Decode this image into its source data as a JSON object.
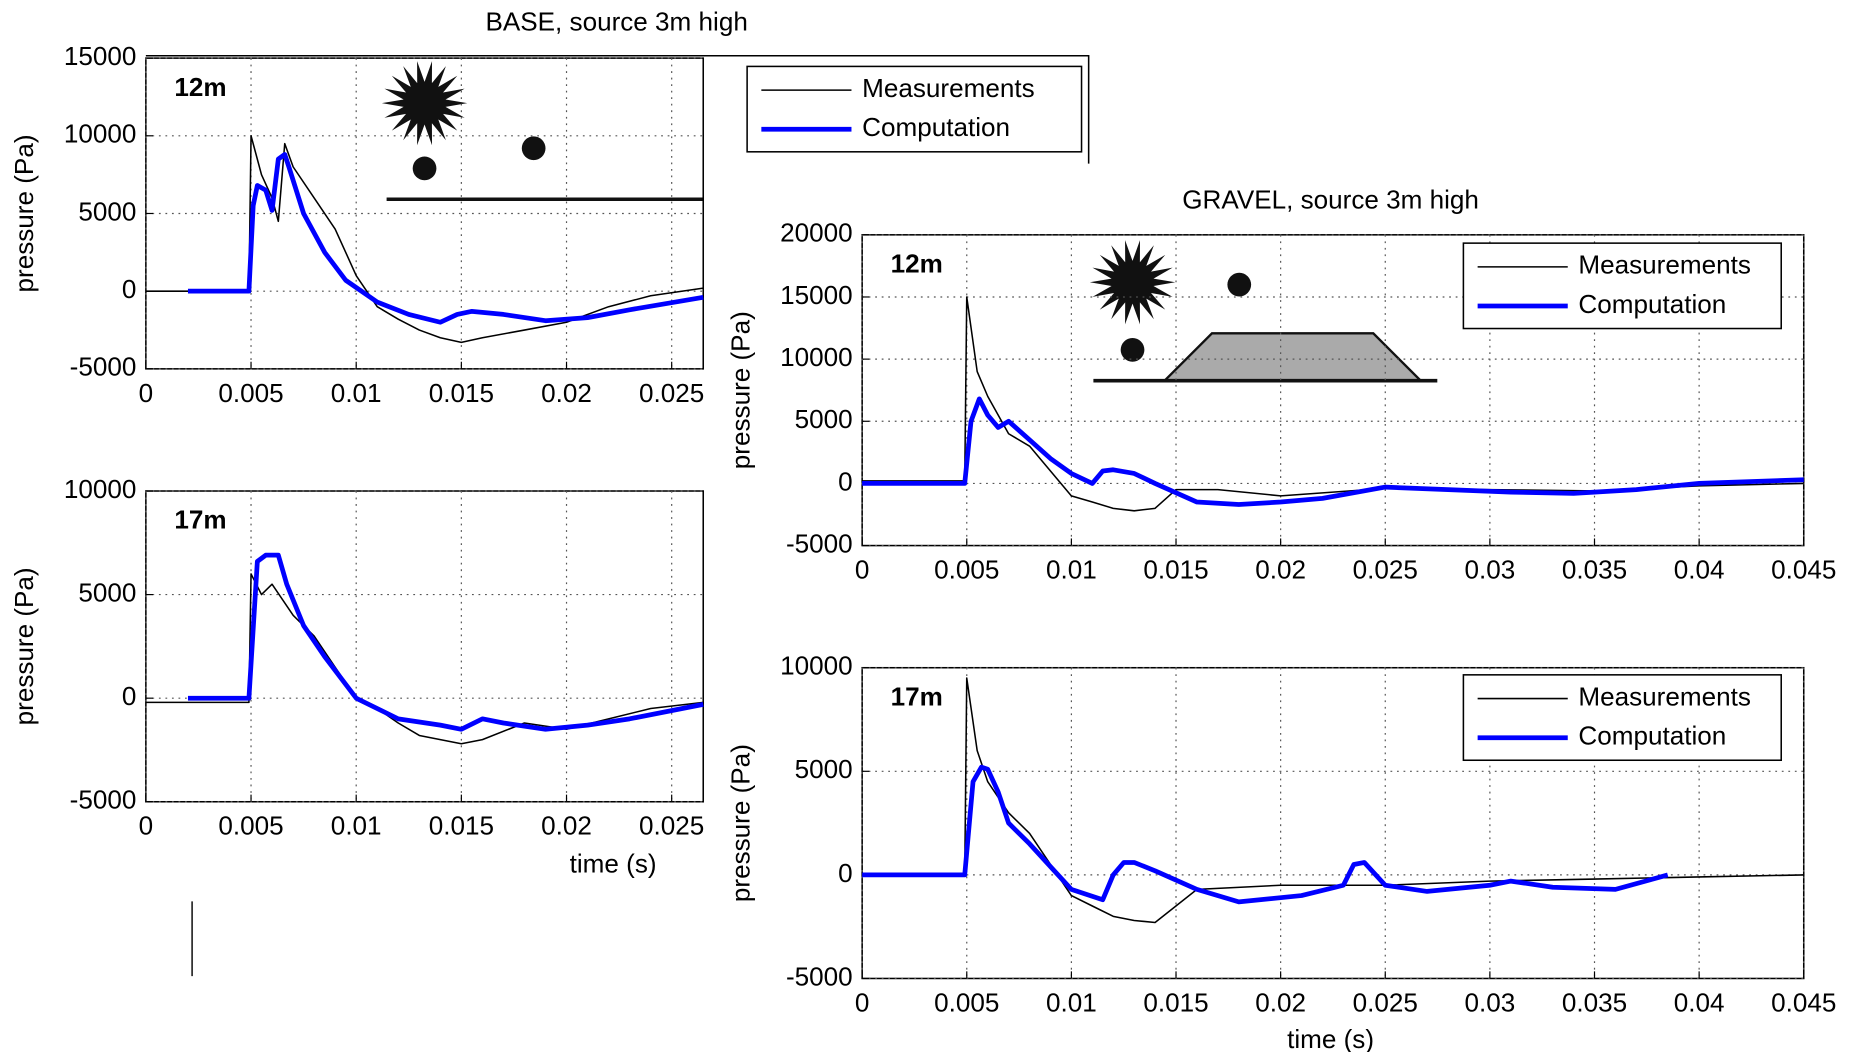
{
  "chart_data": [
    {
      "type": "line",
      "title": "BASE, source 3m high",
      "annotation": "12m",
      "ylabel": "pressure (Pa)",
      "xlim": [
        0,
        0.0265
      ],
      "xticks": [
        0,
        0.005,
        0.01,
        0.015,
        0.02,
        0.025
      ],
      "ylim": [
        -5000,
        15000
      ],
      "yticks": [
        -5000,
        0,
        5000,
        10000,
        15000
      ],
      "grid": true,
      "legend": "upper right",
      "series": [
        {
          "name": "Measurements",
          "color": "#000000",
          "x": [
            0,
            0.0049,
            0.005,
            0.0055,
            0.006,
            0.0063,
            0.0066,
            0.007,
            0.008,
            0.009,
            0.01,
            0.011,
            0.012,
            0.013,
            0.014,
            0.015,
            0.016,
            0.018,
            0.02,
            0.022,
            0.024,
            0.0265
          ],
          "values": [
            0,
            0,
            10000,
            7500,
            6000,
            4500,
            9500,
            8000,
            6000,
            4000,
            1000,
            -1000,
            -1800,
            -2500,
            -3000,
            -3300,
            -3000,
            -2500,
            -2000,
            -1000,
            -300,
            200
          ]
        },
        {
          "name": "Computation",
          "color": "#0000ff",
          "x": [
            0.002,
            0.0049,
            0.0051,
            0.0053,
            0.0057,
            0.006,
            0.0063,
            0.0066,
            0.0068,
            0.0075,
            0.0085,
            0.0095,
            0.011,
            0.0125,
            0.014,
            0.0148,
            0.0155,
            0.017,
            0.019,
            0.021,
            0.023,
            0.0265
          ],
          "values": [
            0,
            0,
            5500,
            6800,
            6500,
            5200,
            8500,
            8800,
            8000,
            5000,
            2500,
            700,
            -700,
            -1500,
            -2000,
            -1500,
            -1300,
            -1500,
            -1900,
            -1700,
            -1200,
            -400
          ]
        }
      ]
    },
    {
      "type": "line",
      "annotation": "17m",
      "ylabel": "pressure (Pa)",
      "xlabel": "time (s)",
      "xlim": [
        0,
        0.0265
      ],
      "xticks": [
        0,
        0.005,
        0.01,
        0.015,
        0.02,
        0.025
      ],
      "ylim": [
        -5000,
        10000
      ],
      "yticks": [
        -5000,
        0,
        5000,
        10000
      ],
      "grid": true,
      "series": [
        {
          "color": "#000000",
          "x": [
            0,
            0.0049,
            0.005,
            0.0055,
            0.006,
            0.007,
            0.008,
            0.009,
            0.01,
            0.011,
            0.012,
            0.013,
            0.014,
            0.015,
            0.016,
            0.018,
            0.02,
            0.022,
            0.024,
            0.0265
          ],
          "values": [
            -200,
            -200,
            6000,
            5000,
            5500,
            4000,
            3000,
            1500,
            0,
            -500,
            -1200,
            -1800,
            -2000,
            -2200,
            -2000,
            -1200,
            -1500,
            -1000,
            -500,
            -200
          ]
        },
        {
          "color": "#0000ff",
          "x": [
            0.002,
            0.0049,
            0.0053,
            0.0057,
            0.0063,
            0.0067,
            0.0075,
            0.0085,
            0.01,
            0.012,
            0.014,
            0.015,
            0.016,
            0.017,
            0.019,
            0.021,
            0.023,
            0.0265
          ],
          "values": [
            0,
            0,
            6600,
            6900,
            6900,
            5500,
            3500,
            2000,
            0,
            -1000,
            -1300,
            -1500,
            -1000,
            -1200,
            -1500,
            -1300,
            -1000,
            -300
          ]
        }
      ]
    },
    {
      "type": "line",
      "title": "GRAVEL, source 3m high",
      "annotation": "12m",
      "ylabel": "pressure (Pa)",
      "xlim": [
        0,
        0.045
      ],
      "xticks": [
        0,
        0.005,
        0.01,
        0.015,
        0.02,
        0.025,
        0.03,
        0.035,
        0.04,
        0.045
      ],
      "ylim": [
        -5000,
        20000
      ],
      "yticks": [
        -5000,
        0,
        5000,
        10000,
        15000,
        20000
      ],
      "grid": true,
      "legend": "upper right",
      "series": [
        {
          "name": "Measurements",
          "color": "#000000",
          "x": [
            0,
            0.0049,
            0.005,
            0.0055,
            0.006,
            0.007,
            0.008,
            0.009,
            0.01,
            0.011,
            0.012,
            0.013,
            0.014,
            0.015,
            0.017,
            0.02,
            0.025,
            0.03,
            0.035,
            0.04,
            0.045
          ],
          "values": [
            200,
            200,
            15000,
            9000,
            7000,
            4000,
            3000,
            1000,
            -1000,
            -1500,
            -2000,
            -2200,
            -2000,
            -500,
            -500,
            -1000,
            -400,
            -500,
            -600,
            -200,
            0
          ]
        },
        {
          "name": "Computation",
          "color": "#0000ff",
          "x": [
            0,
            0.0049,
            0.0052,
            0.0056,
            0.006,
            0.0065,
            0.007,
            0.008,
            0.009,
            0.01,
            0.011,
            0.0115,
            0.012,
            0.013,
            0.014,
            0.016,
            0.018,
            0.02,
            0.022,
            0.025,
            0.028,
            0.031,
            0.034,
            0.037,
            0.04,
            0.045
          ],
          "values": [
            0,
            0,
            5000,
            6800,
            5500,
            4500,
            5000,
            3500,
            2000,
            800,
            0,
            1000,
            1100,
            800,
            0,
            -1500,
            -1700,
            -1500,
            -1200,
            -300,
            -500,
            -700,
            -800,
            -500,
            0,
            300
          ]
        }
      ]
    },
    {
      "type": "line",
      "annotation": "17m",
      "ylabel": "pressure (Pa)",
      "xlabel": "time (s)",
      "xlim": [
        0,
        0.045
      ],
      "xticks": [
        0,
        0.005,
        0.01,
        0.015,
        0.02,
        0.025,
        0.03,
        0.035,
        0.04,
        0.045
      ],
      "ylim": [
        -5000,
        10000
      ],
      "yticks": [
        -5000,
        0,
        5000,
        10000
      ],
      "grid": true,
      "legend": "upper right",
      "series": [
        {
          "name": "Measurements",
          "color": "#000000",
          "x": [
            0,
            0.0049,
            0.005,
            0.0055,
            0.006,
            0.007,
            0.008,
            0.009,
            0.01,
            0.011,
            0.012,
            0.013,
            0.014,
            0.016,
            0.02,
            0.025,
            0.03,
            0.035,
            0.04,
            0.045
          ],
          "values": [
            0,
            0,
            9500,
            6000,
            4500,
            3000,
            2000,
            500,
            -1000,
            -1500,
            -2000,
            -2200,
            -2300,
            -700,
            -500,
            -500,
            -300,
            -200,
            -100,
            0
          ]
        },
        {
          "name": "Computation",
          "color": "#0000ff",
          "x": [
            0,
            0.0049,
            0.0053,
            0.0057,
            0.006,
            0.0065,
            0.007,
            0.008,
            0.01,
            0.0115,
            0.012,
            0.0125,
            0.013,
            0.014,
            0.016,
            0.018,
            0.021,
            0.023,
            0.0235,
            0.024,
            0.025,
            0.027,
            0.03,
            0.031,
            0.033,
            0.036,
            0.0385
          ],
          "values": [
            0,
            0,
            4500,
            5200,
            5100,
            4000,
            2500,
            1500,
            -700,
            -1200,
            0,
            600,
            600,
            200,
            -700,
            -1300,
            -1000,
            -500,
            500,
            600,
            -500,
            -800,
            -500,
            -300,
            -600,
            -700,
            0
          ]
        }
      ]
    }
  ]
}
